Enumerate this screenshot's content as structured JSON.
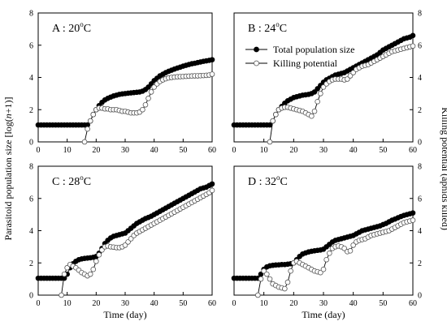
{
  "figure": {
    "ylabel_left_pre": "Parasitoid population size [log(",
    "ylabel_left_italic": "n",
    "ylabel_left_post": "+1)]",
    "ylabel_right": "Killing potential (aphids killed)"
  },
  "chart_data": [
    {
      "type": "line",
      "panel": "A",
      "title_prefix": "A : 20",
      "title_sup": "o",
      "title_suffix": "C",
      "xlabel": "",
      "xlim": [
        0,
        60
      ],
      "ylim": [
        0,
        8
      ],
      "xticks": [
        0,
        10,
        20,
        30,
        40,
        50,
        60
      ],
      "yticks": [
        0,
        2,
        4,
        6,
        8
      ],
      "legend": null,
      "series": [
        {
          "name": "Total population size",
          "marker": "filled",
          "x": [
            0,
            1,
            2,
            3,
            4,
            5,
            6,
            7,
            8,
            9,
            10,
            11,
            12,
            13,
            14,
            15,
            16,
            17,
            18,
            19,
            20,
            21,
            22,
            23,
            24,
            25,
            26,
            27,
            28,
            29,
            30,
            31,
            32,
            33,
            34,
            35,
            36,
            37,
            38,
            39,
            40,
            41,
            42,
            43,
            44,
            45,
            46,
            47,
            48,
            49,
            50,
            51,
            52,
            53,
            54,
            55,
            56,
            57,
            58,
            59,
            60
          ],
          "y": [
            1.05,
            1.05,
            1.05,
            1.05,
            1.05,
            1.05,
            1.05,
            1.05,
            1.05,
            1.05,
            1.05,
            1.05,
            1.05,
            1.05,
            1.05,
            1.05,
            1.05,
            1.05,
            1.3,
            1.7,
            2.0,
            2.25,
            2.45,
            2.6,
            2.7,
            2.78,
            2.85,
            2.9,
            2.95,
            2.98,
            3.0,
            3.02,
            3.04,
            3.06,
            3.08,
            3.1,
            3.15,
            3.25,
            3.4,
            3.6,
            3.8,
            3.95,
            4.1,
            4.2,
            4.3,
            4.38,
            4.45,
            4.52,
            4.58,
            4.64,
            4.7,
            4.75,
            4.8,
            4.85,
            4.88,
            4.92,
            4.96,
            5.0,
            5.03,
            5.06,
            5.1
          ]
        },
        {
          "name": "Killing potential",
          "marker": "open",
          "x": [
            16,
            17,
            18,
            19,
            20,
            21,
            22,
            23,
            24,
            25,
            26,
            27,
            28,
            29,
            30,
            31,
            32,
            33,
            34,
            35,
            36,
            37,
            38,
            39,
            40,
            41,
            42,
            43,
            44,
            45,
            46,
            47,
            48,
            49,
            50,
            51,
            52,
            53,
            54,
            55,
            56,
            57,
            58,
            59,
            60
          ],
          "y": [
            0,
            0.8,
            1.3,
            1.7,
            2.0,
            2.1,
            2.1,
            2.05,
            2.05,
            2.0,
            2.0,
            2.0,
            1.95,
            1.9,
            1.9,
            1.85,
            1.8,
            1.8,
            1.8,
            1.85,
            2.0,
            2.3,
            2.7,
            3.1,
            3.4,
            3.6,
            3.75,
            3.85,
            3.92,
            3.97,
            4.0,
            4.02,
            4.04,
            4.05,
            4.06,
            4.07,
            4.08,
            4.09,
            4.1,
            4.1,
            4.11,
            4.12,
            4.13,
            4.15,
            4.2
          ]
        }
      ]
    },
    {
      "type": "line",
      "panel": "B",
      "title_prefix": "B : 24",
      "title_sup": "o",
      "title_suffix": "C",
      "xlabel": "",
      "xlim": [
        0,
        60
      ],
      "ylim": [
        0,
        8
      ],
      "xticks": [
        0,
        10,
        20,
        30,
        40,
        50,
        60
      ],
      "yticks": [
        0,
        2,
        4,
        6,
        8
      ],
      "legend": {
        "position": "top-right",
        "entries": [
          "Total population size",
          "Killing potential"
        ]
      },
      "series": [
        {
          "name": "Total population size",
          "marker": "filled",
          "x": [
            0,
            1,
            2,
            3,
            4,
            5,
            6,
            7,
            8,
            9,
            10,
            11,
            12,
            13,
            14,
            15,
            16,
            17,
            18,
            19,
            20,
            21,
            22,
            23,
            24,
            25,
            26,
            27,
            28,
            29,
            30,
            31,
            32,
            33,
            34,
            35,
            36,
            37,
            38,
            39,
            40,
            41,
            42,
            43,
            44,
            45,
            46,
            47,
            48,
            49,
            50,
            51,
            52,
            53,
            54,
            55,
            56,
            57,
            58,
            59,
            60
          ],
          "y": [
            1.05,
            1.05,
            1.05,
            1.05,
            1.05,
            1.05,
            1.05,
            1.05,
            1.05,
            1.05,
            1.05,
            1.05,
            1.05,
            1.3,
            1.7,
            2.0,
            2.2,
            2.4,
            2.55,
            2.65,
            2.75,
            2.8,
            2.85,
            2.9,
            2.92,
            2.95,
            3.0,
            3.1,
            3.3,
            3.5,
            3.7,
            3.85,
            3.95,
            4.05,
            4.15,
            4.2,
            4.25,
            4.3,
            4.4,
            4.5,
            4.6,
            4.7,
            4.8,
            4.9,
            5.0,
            5.1,
            5.2,
            5.3,
            5.4,
            5.55,
            5.7,
            5.8,
            5.9,
            6.0,
            6.1,
            6.2,
            6.3,
            6.4,
            6.45,
            6.5,
            6.6
          ]
        },
        {
          "name": "Killing potential",
          "marker": "open",
          "x": [
            12,
            13,
            14,
            15,
            16,
            17,
            18,
            19,
            20,
            21,
            22,
            23,
            24,
            25,
            26,
            27,
            28,
            29,
            30,
            31,
            32,
            33,
            34,
            35,
            36,
            37,
            38,
            39,
            40,
            41,
            42,
            43,
            44,
            45,
            46,
            47,
            48,
            49,
            50,
            51,
            52,
            53,
            54,
            55,
            56,
            57,
            58,
            59,
            60
          ],
          "y": [
            0,
            1.3,
            1.7,
            2.0,
            2.1,
            2.15,
            2.15,
            2.1,
            2.05,
            2.0,
            1.95,
            1.9,
            1.8,
            1.7,
            1.6,
            1.9,
            2.5,
            3.0,
            3.4,
            3.6,
            3.75,
            3.85,
            3.9,
            3.9,
            3.9,
            3.85,
            3.9,
            4.1,
            4.3,
            4.5,
            4.6,
            4.7,
            4.75,
            4.8,
            4.9,
            5.0,
            5.1,
            5.2,
            5.3,
            5.4,
            5.5,
            5.6,
            5.65,
            5.7,
            5.75,
            5.8,
            5.85,
            5.9,
            5.95
          ]
        }
      ]
    },
    {
      "type": "line",
      "panel": "C",
      "title_prefix": "C : 28",
      "title_sup": "o",
      "title_suffix": "C",
      "xlabel": "Time (day)",
      "xlim": [
        0,
        60
      ],
      "ylim": [
        0,
        8
      ],
      "xticks": [
        0,
        10,
        20,
        30,
        40,
        50,
        60
      ],
      "yticks": [
        0,
        2,
        4,
        6,
        8
      ],
      "legend": null,
      "series": [
        {
          "name": "Total population size",
          "marker": "filled",
          "x": [
            0,
            1,
            2,
            3,
            4,
            5,
            6,
            7,
            8,
            9,
            10,
            11,
            12,
            13,
            14,
            15,
            16,
            17,
            18,
            19,
            20,
            21,
            22,
            23,
            24,
            25,
            26,
            27,
            28,
            29,
            30,
            31,
            32,
            33,
            34,
            35,
            36,
            37,
            38,
            39,
            40,
            41,
            42,
            43,
            44,
            45,
            46,
            47,
            48,
            49,
            50,
            51,
            52,
            53,
            54,
            55,
            56,
            57,
            58,
            59,
            60
          ],
          "y": [
            1.05,
            1.05,
            1.05,
            1.05,
            1.05,
            1.05,
            1.05,
            1.05,
            1.05,
            1.05,
            1.3,
            1.7,
            1.95,
            2.1,
            2.2,
            2.25,
            2.28,
            2.3,
            2.32,
            2.35,
            2.4,
            2.6,
            2.9,
            3.2,
            3.4,
            3.55,
            3.65,
            3.7,
            3.75,
            3.8,
            3.85,
            4.0,
            4.15,
            4.3,
            4.45,
            4.55,
            4.65,
            4.75,
            4.82,
            4.9,
            5.0,
            5.1,
            5.2,
            5.3,
            5.4,
            5.5,
            5.6,
            5.7,
            5.8,
            5.9,
            6.0,
            6.1,
            6.2,
            6.3,
            6.4,
            6.5,
            6.6,
            6.65,
            6.7,
            6.8,
            6.9
          ]
        },
        {
          "name": "Killing potential",
          "marker": "open",
          "x": [
            8,
            9,
            10,
            11,
            12,
            13,
            14,
            15,
            16,
            17,
            18,
            19,
            20,
            21,
            22,
            23,
            24,
            25,
            26,
            27,
            28,
            29,
            30,
            31,
            32,
            33,
            34,
            35,
            36,
            37,
            38,
            39,
            40,
            41,
            42,
            43,
            44,
            45,
            46,
            47,
            48,
            49,
            50,
            51,
            52,
            53,
            54,
            55,
            56,
            57,
            58,
            59,
            60
          ],
          "y": [
            0,
            1.3,
            1.7,
            1.9,
            1.8,
            1.7,
            1.55,
            1.4,
            1.3,
            1.2,
            1.3,
            1.6,
            2.1,
            2.5,
            2.8,
            3.0,
            3.05,
            3.0,
            2.98,
            2.95,
            2.95,
            3.0,
            3.1,
            3.3,
            3.5,
            3.7,
            3.85,
            3.95,
            4.05,
            4.15,
            4.25,
            4.35,
            4.45,
            4.55,
            4.65,
            4.75,
            4.85,
            4.95,
            5.05,
            5.15,
            5.25,
            5.35,
            5.45,
            5.55,
            5.65,
            5.75,
            5.85,
            5.95,
            6.05,
            6.15,
            6.25,
            6.35,
            6.5
          ]
        }
      ]
    },
    {
      "type": "line",
      "panel": "D",
      "title_prefix": "D : 32",
      "title_sup": "o",
      "title_suffix": "C",
      "xlabel": "Time (day)",
      "xlim": [
        0,
        60
      ],
      "ylim": [
        0,
        8
      ],
      "xticks": [
        0,
        10,
        20,
        30,
        40,
        50,
        60
      ],
      "yticks": [
        0,
        2,
        4,
        6,
        8
      ],
      "legend": null,
      "series": [
        {
          "name": "Total population size",
          "marker": "filled",
          "x": [
            0,
            1,
            2,
            3,
            4,
            5,
            6,
            7,
            8,
            9,
            10,
            11,
            12,
            13,
            14,
            15,
            16,
            17,
            18,
            19,
            20,
            21,
            22,
            23,
            24,
            25,
            26,
            27,
            28,
            29,
            30,
            31,
            32,
            33,
            34,
            35,
            36,
            37,
            38,
            39,
            40,
            41,
            42,
            43,
            44,
            45,
            46,
            47,
            48,
            49,
            50,
            51,
            52,
            53,
            54,
            55,
            56,
            57,
            58,
            59,
            60
          ],
          "y": [
            1.05,
            1.05,
            1.05,
            1.05,
            1.05,
            1.05,
            1.05,
            1.05,
            1.05,
            1.3,
            1.6,
            1.75,
            1.82,
            1.85,
            1.87,
            1.88,
            1.9,
            1.9,
            1.92,
            1.95,
            2.0,
            2.2,
            2.4,
            2.55,
            2.62,
            2.68,
            2.72,
            2.75,
            2.78,
            2.8,
            2.85,
            3.0,
            3.15,
            3.3,
            3.4,
            3.45,
            3.5,
            3.55,
            3.6,
            3.65,
            3.7,
            3.8,
            3.9,
            4.0,
            4.05,
            4.1,
            4.15,
            4.2,
            4.25,
            4.3,
            4.38,
            4.45,
            4.55,
            4.65,
            4.72,
            4.8,
            4.88,
            4.95,
            5.0,
            5.05,
            5.1
          ]
        },
        {
          "name": "Killing potential",
          "marker": "open",
          "x": [
            8,
            9,
            10,
            11,
            12,
            13,
            14,
            15,
            16,
            17,
            18,
            19,
            20,
            21,
            22,
            23,
            24,
            25,
            26,
            27,
            28,
            29,
            30,
            31,
            32,
            33,
            34,
            35,
            36,
            37,
            38,
            39,
            40,
            41,
            42,
            43,
            44,
            45,
            46,
            47,
            48,
            49,
            50,
            51,
            52,
            53,
            54,
            55,
            56,
            57,
            58,
            59,
            60
          ],
          "y": [
            0,
            1.0,
            1.5,
            1.3,
            1.0,
            0.7,
            0.6,
            0.5,
            0.45,
            0.4,
            0.8,
            1.5,
            2.0,
            2.1,
            2.0,
            1.9,
            1.8,
            1.7,
            1.6,
            1.5,
            1.45,
            1.4,
            1.6,
            2.2,
            2.6,
            2.9,
            3.0,
            3.05,
            3.0,
            2.9,
            2.7,
            2.75,
            3.1,
            3.3,
            3.4,
            3.45,
            3.5,
            3.6,
            3.7,
            3.75,
            3.8,
            3.85,
            3.9,
            3.95,
            4.0,
            4.1,
            4.2,
            4.3,
            4.4,
            4.5,
            4.55,
            4.6,
            4.65
          ]
        }
      ]
    }
  ]
}
